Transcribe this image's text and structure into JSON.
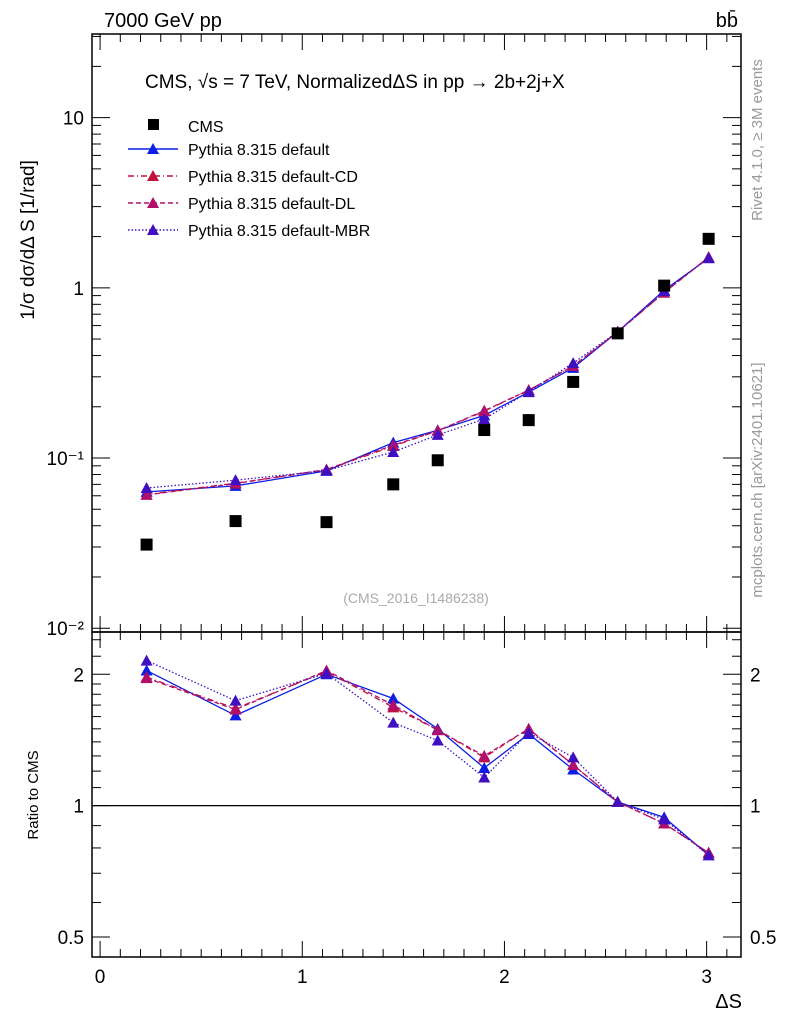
{
  "chart_data": {
    "type": "scatter",
    "header_left": "7000 GeV pp",
    "header_right": "bb̄",
    "title": "CMS, √s = 7 TeV, NormalizedΔS in pp →  2b+2j+X",
    "ylabel": "1/σ dσ/dΔ S [1/rad]",
    "ratio_ylabel": "Ratio to CMS",
    "xlabel": "ΔS",
    "analysis_id": "(CMS_2016_I1486238)",
    "side_text_top": "Rivet 4.1.0, ≥ 3M events",
    "side_text_bottom": "mcplots.cern.ch [arXiv:2401.10621]",
    "xlim": [
      -0.04,
      3.17
    ],
    "ylim": [
      0.0095,
      31
    ],
    "ratio_ylim": [
      0.45,
      2.5
    ],
    "yscale": "log",
    "x_ticks": [
      "0",
      "1",
      "2",
      "3"
    ],
    "y_ticks": [
      "10",
      "1",
      "10⁻¹",
      "10⁻²"
    ],
    "ratio_ticks": [
      "2",
      "1",
      "0.5"
    ],
    "x": [
      0.23,
      0.67,
      1.12,
      1.45,
      1.67,
      1.9,
      2.12,
      2.34,
      2.56,
      2.79,
      3.01
    ],
    "data": {
      "name": "CMS",
      "values": [
        0.031,
        0.0426,
        0.042,
        0.07,
        0.097,
        0.146,
        0.167,
        0.28,
        0.54,
        1.03,
        1.94
      ]
    },
    "series": [
      {
        "name": "Pythia 8.315 default",
        "color": "#0a1ee6",
        "dash": "",
        "ratio": [
          2.04,
          1.61,
          2.0,
          1.76,
          1.5,
          1.22,
          1.46,
          1.21,
          1.02,
          0.94,
          0.77
        ]
      },
      {
        "name": "Pythia 8.315 default-CD",
        "color": "#c0103c",
        "dash": "6,3,1,3",
        "ratio": [
          1.97,
          1.67,
          2.03,
          1.68,
          1.49,
          1.29,
          1.5,
          1.24,
          1.02,
          0.91,
          0.78
        ]
      },
      {
        "name": "Pythia 8.315 default-DL",
        "color": "#b0106a",
        "dash": "5,3",
        "ratio": [
          1.96,
          1.66,
          2.04,
          1.7,
          1.49,
          1.3,
          1.5,
          1.24,
          1.02,
          0.91,
          0.78
        ]
      },
      {
        "name": "Pythia 8.315 default-MBR",
        "color": "#4010c0",
        "dash": "1.5,2",
        "ratio": [
          2.15,
          1.74,
          2.01,
          1.55,
          1.41,
          1.16,
          1.47,
          1.29,
          1.02,
          0.93,
          0.77
        ]
      }
    ]
  }
}
